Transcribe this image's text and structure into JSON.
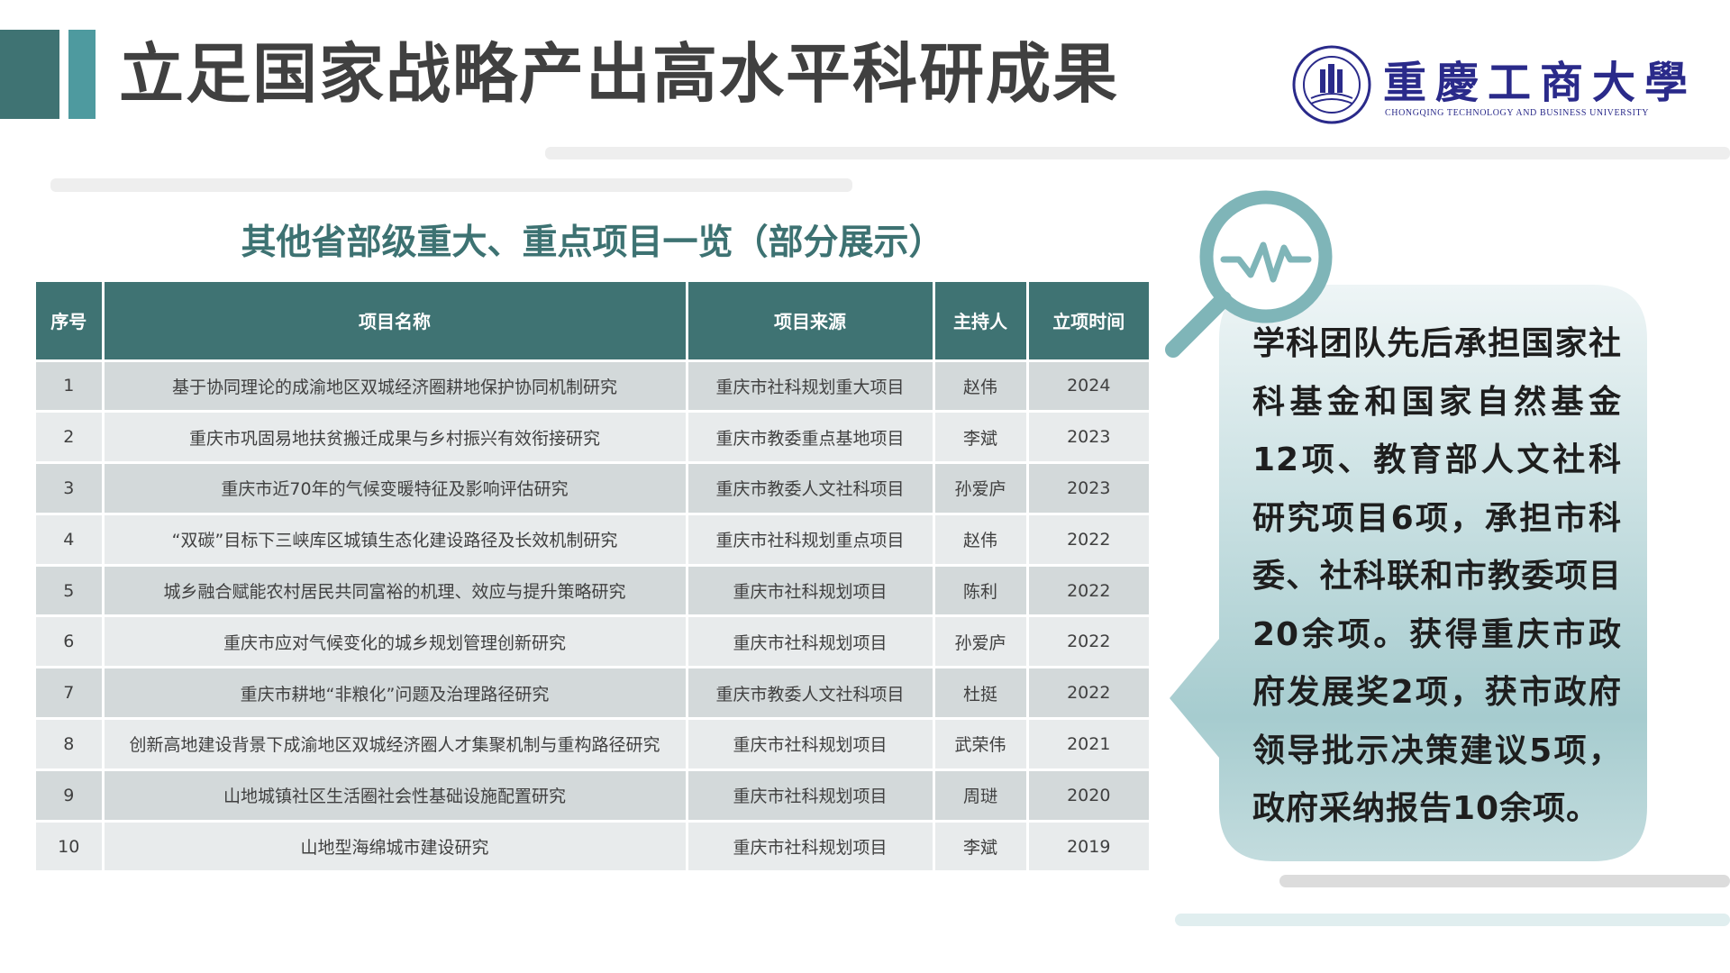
{
  "header": {
    "title": "立足国家战略产出高水平科研成果",
    "logo": {
      "name_cn": "重慶工商大學",
      "name_en": "CHONGQING TECHNOLOGY AND BUSINESS UNIVERSITY"
    }
  },
  "section": {
    "subtitle": "其他省部级重大、重点项目一览（部分展示）"
  },
  "table": {
    "headers": [
      "序号",
      "项目名称",
      "项目来源",
      "主持人",
      "立项时间"
    ],
    "rows": [
      [
        "1",
        "基于协同理论的成渝地区双城经济圈耕地保护协同机制研究",
        "重庆市社科规划重大项目",
        "赵伟",
        "2024"
      ],
      [
        "2",
        "重庆市巩固易地扶贫搬迁成果与乡村振兴有效衔接研究",
        "重庆市教委重点基地项目",
        "李斌",
        "2023"
      ],
      [
        "3",
        "重庆市近70年的气候变暖特征及影响评估研究",
        "重庆市教委人文社科项目",
        "孙爱庐",
        "2023"
      ],
      [
        "4",
        "“双碳”目标下三峡库区城镇生态化建设路径及长效机制研究",
        "重庆市社科规划重点项目",
        "赵伟",
        "2022"
      ],
      [
        "5",
        "城乡融合赋能农村居民共同富裕的机理、效应与提升策略研究",
        "重庆市社科规划项目",
        "陈利",
        "2022"
      ],
      [
        "6",
        "重庆市应对气候变化的城乡规划管理创新研究",
        "重庆市社科规划项目",
        "孙爱庐",
        "2022"
      ],
      [
        "7",
        "重庆市耕地“非粮化”问题及治理路径研究",
        "重庆市教委人文社科项目",
        "杜挺",
        "2022"
      ],
      [
        "8",
        "创新高地建设背景下成渝地区双城经济圈人才集聚机制与重构路径研究",
        "重庆市社科规划项目",
        "武荣伟",
        "2021"
      ],
      [
        "9",
        "山地城镇社区生活圈社会性基础设施配置研究",
        "重庆市社科规划项目",
        "周琎",
        "2020"
      ],
      [
        "10",
        "山地型海绵城市建设研究",
        "重庆市社科规划项目",
        "李斌",
        "2019"
      ]
    ]
  },
  "summary": {
    "icon": "magnifier-heartbeat-icon",
    "text": "学科团队先后承担国家社科基金和国家自然基金12项、教育部人文社科研究项目6项，承担市科委、社科联和市教委项目20余项。获得重庆市政府发展奖2项，获市政府领导批示决策建议5项，政府采纳报告10余项。"
  },
  "colors": {
    "accent": "#3f7373",
    "accent_light": "#4e9a9f",
    "icon": "#7fb5b8",
    "row_odd": "#d3d9da",
    "row_even": "#e8ebec"
  }
}
